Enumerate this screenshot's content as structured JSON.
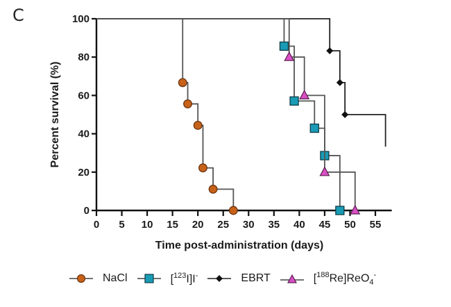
{
  "panel_label": "C",
  "chart_data": {
    "type": "line",
    "subtype": "kaplan-meier-step",
    "xlabel": "Time post-administration (days)",
    "ylabel": "Percent survival (%)",
    "xlim": [
      0,
      57
    ],
    "ylim": [
      0,
      100
    ],
    "x_ticks": [
      0,
      5,
      10,
      15,
      20,
      25,
      30,
      35,
      40,
      45,
      50,
      55
    ],
    "y_ticks": [
      0,
      20,
      40,
      60,
      80,
      100
    ],
    "grid": false,
    "legend_position": "bottom",
    "series": [
      {
        "name": "NaCl",
        "marker": "circle",
        "color": "#c8621a",
        "steps": [
          [
            0,
            100
          ],
          [
            17,
            66.7
          ],
          [
            18,
            55.6
          ],
          [
            20,
            44.4
          ],
          [
            21,
            22.2
          ],
          [
            23,
            11.1
          ],
          [
            27,
            0
          ]
        ],
        "marker_points": [
          [
            17,
            66.7
          ],
          [
            18,
            55.6
          ],
          [
            20,
            44.4
          ],
          [
            21,
            22.2
          ],
          [
            23,
            11.1
          ],
          [
            27,
            0
          ]
        ]
      },
      {
        "name": "[123I]I-",
        "legend_parts": {
          "pre": "[",
          "sup": "123",
          "mid": "I]I",
          "sup2": "-"
        },
        "marker": "square",
        "color": "#1a9bb5",
        "steps": [
          [
            0,
            100
          ],
          [
            37,
            85.7
          ],
          [
            39,
            57.1
          ],
          [
            43,
            42.9
          ],
          [
            45,
            28.6
          ],
          [
            48,
            0
          ]
        ],
        "marker_points": [
          [
            37,
            85.7
          ],
          [
            39,
            57.1
          ],
          [
            43,
            42.9
          ],
          [
            45,
            28.6
          ],
          [
            48,
            0
          ]
        ]
      },
      {
        "name": "EBRT",
        "marker": "diamond",
        "color": "#111111",
        "steps": [
          [
            0,
            100
          ],
          [
            46,
            83.3
          ],
          [
            48,
            66.7
          ],
          [
            49,
            50
          ],
          [
            57,
            33.3
          ]
        ],
        "marker_points": [
          [
            46,
            83.3
          ],
          [
            48,
            66.7
          ],
          [
            49,
            50
          ]
        ],
        "open_end": true
      },
      {
        "name": "[188Re]ReO4-",
        "legend_parts": {
          "pre": "[",
          "sup": "188",
          "mid": "Re]ReO",
          "sub": "4",
          "sup2": "-"
        },
        "marker": "triangle",
        "color": "#d94fc4",
        "steps": [
          [
            0,
            100
          ],
          [
            38,
            80
          ],
          [
            41,
            60
          ],
          [
            45,
            20
          ],
          [
            51,
            0
          ]
        ],
        "marker_points": [
          [
            38,
            80
          ],
          [
            41,
            60
          ],
          [
            45,
            20
          ],
          [
            51,
            0
          ]
        ]
      }
    ]
  }
}
